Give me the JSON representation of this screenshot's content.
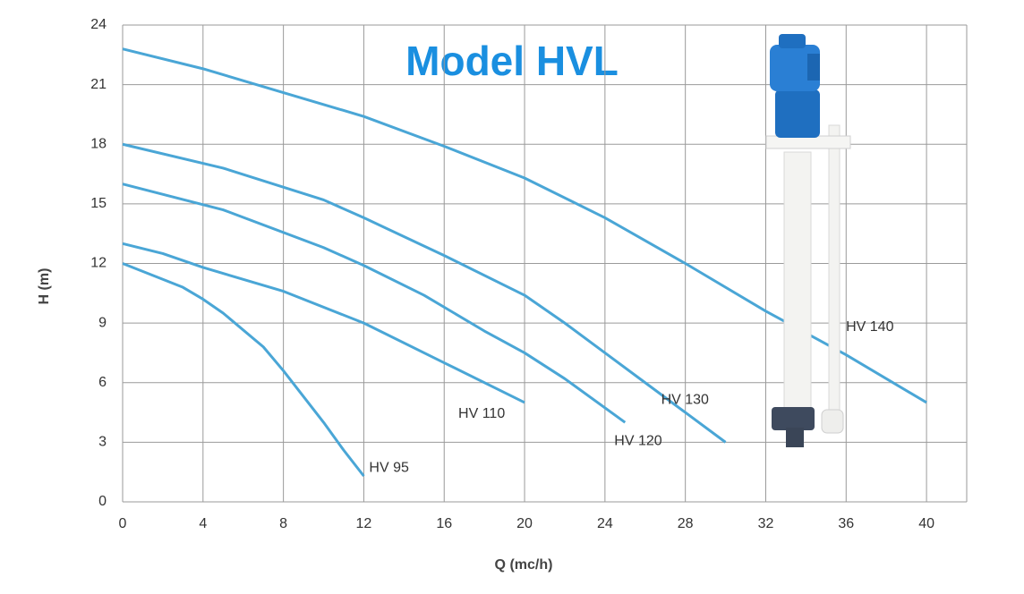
{
  "chart_data": {
    "type": "line",
    "title": "Model HVL",
    "x_label": "Q (mc/h)",
    "y_label": "H (m)",
    "xlim": [
      0,
      42
    ],
    "ylim": [
      0,
      24
    ],
    "xticks": [
      0,
      4,
      8,
      12,
      16,
      20,
      24,
      28,
      32,
      36,
      40
    ],
    "yticks": [
      0,
      3,
      6,
      9,
      12,
      15,
      18,
      21,
      24
    ],
    "grid": true,
    "series": [
      {
        "name": "HV 95",
        "color": "#4aa6d6",
        "x": [
          0,
          3,
          4,
          5,
          7,
          8,
          9,
          10,
          11,
          12
        ],
        "values": [
          12.0,
          10.8,
          10.2,
          9.5,
          7.8,
          6.6,
          5.3,
          4.0,
          2.6,
          1.3
        ]
      },
      {
        "name": "HV 110",
        "color": "#4aa6d6",
        "x": [
          0,
          2,
          4,
          8,
          12,
          16,
          20
        ],
        "values": [
          13.0,
          12.5,
          11.8,
          10.6,
          9.0,
          7.0,
          5.0
        ]
      },
      {
        "name": "HV 120",
        "color": "#4aa6d6",
        "x": [
          0,
          5,
          10,
          12,
          15,
          18,
          20,
          22,
          25
        ],
        "values": [
          16.0,
          14.7,
          12.8,
          11.9,
          10.4,
          8.6,
          7.5,
          6.2,
          4.0
        ]
      },
      {
        "name": "HV 130",
        "color": "#4aa6d6",
        "x": [
          0,
          5,
          10,
          12,
          16,
          20,
          22,
          24,
          26,
          28,
          30
        ],
        "values": [
          18.0,
          16.8,
          15.2,
          14.3,
          12.4,
          10.4,
          9.0,
          7.5,
          6.0,
          4.5,
          3.0
        ]
      },
      {
        "name": "HV 140",
        "color": "#4aa6d6",
        "x": [
          0,
          4,
          8,
          12,
          16,
          20,
          24,
          28,
          32,
          36,
          40
        ],
        "values": [
          22.8,
          21.8,
          20.6,
          19.4,
          17.9,
          16.3,
          14.3,
          12.0,
          9.6,
          7.4,
          5.0
        ]
      }
    ]
  }
}
